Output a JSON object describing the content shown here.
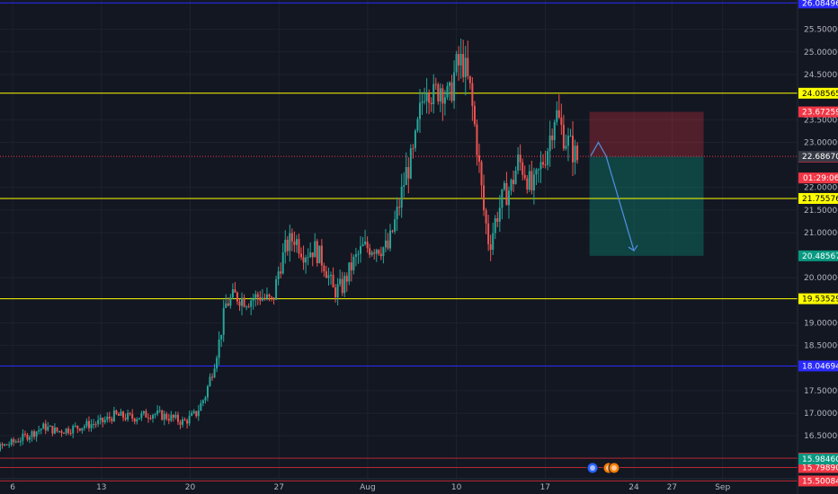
{
  "chart_data": {
    "type": "candlestick",
    "title": "",
    "ylim": [
      15.55,
      26.15
    ],
    "y_ticks": [
      "25.50000",
      "25.00000",
      "24.50000",
      "23.50000",
      "23.00000",
      "22.00000",
      "21.50000",
      "21.00000",
      "20.00000",
      "19.00000",
      "18.50000",
      "17.50000",
      "17.00000",
      "16.50000"
    ],
    "x_ticks": [
      {
        "label": "6",
        "day": 6
      },
      {
        "label": "13",
        "day": 13
      },
      {
        "label": "20",
        "day": 20
      },
      {
        "label": "27",
        "day": 27
      },
      {
        "label": "Aug",
        "day": 34
      },
      {
        "label": "10",
        "day": 41
      },
      {
        "label": "17",
        "day": 48
      },
      {
        "label": "24",
        "day": 55
      },
      {
        "label": "27",
        "day": 58
      },
      {
        "label": "Sep",
        "day": 62
      }
    ],
    "price_anchors": [
      {
        "day": 5,
        "close": 16.25
      },
      {
        "day": 6,
        "close": 16.35
      },
      {
        "day": 7.5,
        "close": 16.55
      },
      {
        "day": 8.5,
        "close": 16.7
      },
      {
        "day": 9.5,
        "close": 16.6
      },
      {
        "day": 10.5,
        "close": 16.65
      },
      {
        "day": 12,
        "close": 16.75
      },
      {
        "day": 13,
        "close": 16.8
      },
      {
        "day": 14,
        "close": 16.95
      },
      {
        "day": 15.5,
        "close": 16.9
      },
      {
        "day": 17,
        "close": 17.0
      },
      {
        "day": 18.5,
        "close": 16.9
      },
      {
        "day": 19.5,
        "close": 16.8
      },
      {
        "day": 20.5,
        "close": 17.0
      },
      {
        "day": 21.2,
        "close": 17.4
      },
      {
        "day": 21.8,
        "close": 18.0
      },
      {
        "day": 22.3,
        "close": 18.6
      },
      {
        "day": 22.8,
        "close": 19.4
      },
      {
        "day": 23.5,
        "close": 19.6
      },
      {
        "day": 24.5,
        "close": 19.5
      },
      {
        "day": 25.5,
        "close": 19.6
      },
      {
        "day": 26.5,
        "close": 19.45
      },
      {
        "day": 27,
        "close": 20.2
      },
      {
        "day": 27.6,
        "close": 20.7
      },
      {
        "day": 28.2,
        "close": 20.9
      },
      {
        "day": 29,
        "close": 20.55
      },
      {
        "day": 29.8,
        "close": 20.65
      },
      {
        "day": 30.6,
        "close": 20.3
      },
      {
        "day": 31.3,
        "close": 19.7
      },
      {
        "day": 32,
        "close": 19.8
      },
      {
        "day": 32.8,
        "close": 20.3
      },
      {
        "day": 33.6,
        "close": 20.65
      },
      {
        "day": 34.6,
        "close": 20.7
      },
      {
        "day": 35.6,
        "close": 20.65
      },
      {
        "day": 36.4,
        "close": 21.5
      },
      {
        "day": 37,
        "close": 22.3
      },
      {
        "day": 37.6,
        "close": 22.7
      },
      {
        "day": 38.1,
        "close": 23.6
      },
      {
        "day": 38.6,
        "close": 24.4
      },
      {
        "day": 39.2,
        "close": 24.0
      },
      {
        "day": 39.8,
        "close": 24.3
      },
      {
        "day": 40.4,
        "close": 23.9
      },
      {
        "day": 40.9,
        "close": 24.6
      },
      {
        "day": 41.5,
        "close": 24.8
      },
      {
        "day": 42.1,
        "close": 24.1
      },
      {
        "day": 42.6,
        "close": 23.0
      },
      {
        "day": 43.1,
        "close": 21.6
      },
      {
        "day": 43.6,
        "close": 20.7
      },
      {
        "day": 44.1,
        "close": 21.3
      },
      {
        "day": 44.7,
        "close": 21.8
      },
      {
        "day": 45.3,
        "close": 22.0
      },
      {
        "day": 45.9,
        "close": 22.6
      },
      {
        "day": 46.5,
        "close": 22.3
      },
      {
        "day": 47,
        "close": 21.9
      },
      {
        "day": 47.6,
        "close": 22.4
      },
      {
        "day": 48.2,
        "close": 22.9
      },
      {
        "day": 48.8,
        "close": 23.7
      },
      {
        "day": 49.4,
        "close": 23.2
      },
      {
        "day": 50,
        "close": 22.9
      },
      {
        "day": 50.6,
        "close": 22.6
      }
    ],
    "horizontal_levels": [
      {
        "value": 26.08496,
        "label": "26.08496",
        "color": "#2a2aff",
        "badge_bg": "#2a2aff",
        "badge_text": "#ffffff"
      },
      {
        "value": 24.08565,
        "label": "24.08565",
        "color": "#ffff00",
        "badge_bg": "#ffff00",
        "badge_text": "#000000"
      },
      {
        "value": 21.75576,
        "label": "21.75576",
        "color": "#ffff00",
        "badge_bg": "#ffff00",
        "badge_text": "#000000"
      },
      {
        "value": 19.53529,
        "label": "19.53529",
        "color": "#ffff00",
        "badge_bg": "#ffff00",
        "badge_text": "#000000"
      },
      {
        "value": 18.04694,
        "label": "18.04694",
        "color": "#2a2aff",
        "badge_bg": "#2a2aff",
        "badge_text": "#ffffff"
      },
      {
        "value": 16.00418,
        "label": "16.00418",
        "color": "#b22833",
        "badge_bg": "#f23645",
        "badge_text": "#ffffff"
      },
      {
        "value": 15.7989,
        "label": "15.79890",
        "color": "#b22833",
        "badge_bg": "#f23645",
        "badge_text": "#ffffff"
      },
      {
        "value": 15.50084,
        "label": "15.50084",
        "color": "#b22833",
        "badge_bg": "#f23645",
        "badge_text": "#ffffff"
      }
    ],
    "current_price": {
      "value": 22.6867,
      "label": "22.68670",
      "color": "#f23645"
    },
    "position": {
      "start_day": 51.5,
      "end_day": 60.5,
      "entry": 22.6867,
      "stop": 23.67259,
      "target": 20.48567,
      "stop_label": "23.67259",
      "target_label": "20.48567",
      "stop_color": "#f23645",
      "target_color": "#089981"
    },
    "extra_badges": [
      {
        "value": 22.67486,
        "label": "22.67486",
        "bg": "#f23645",
        "text": "#ffffff"
      },
      {
        "value": 15.9846,
        "label": "15.98460",
        "bg": "#089981",
        "text": "#ffffff"
      }
    ],
    "countdown": "01:29:06",
    "projection_path": [
      {
        "day": 51.6,
        "price": 22.7
      },
      {
        "day": 52.2,
        "price": 23.0
      },
      {
        "day": 52.8,
        "price": 22.7
      },
      {
        "day": 55.0,
        "price": 20.6
      }
    ],
    "colors": {
      "up": "#26a69a",
      "down": "#ef5350",
      "background": "#131722",
      "grid": "#1e222d"
    }
  }
}
